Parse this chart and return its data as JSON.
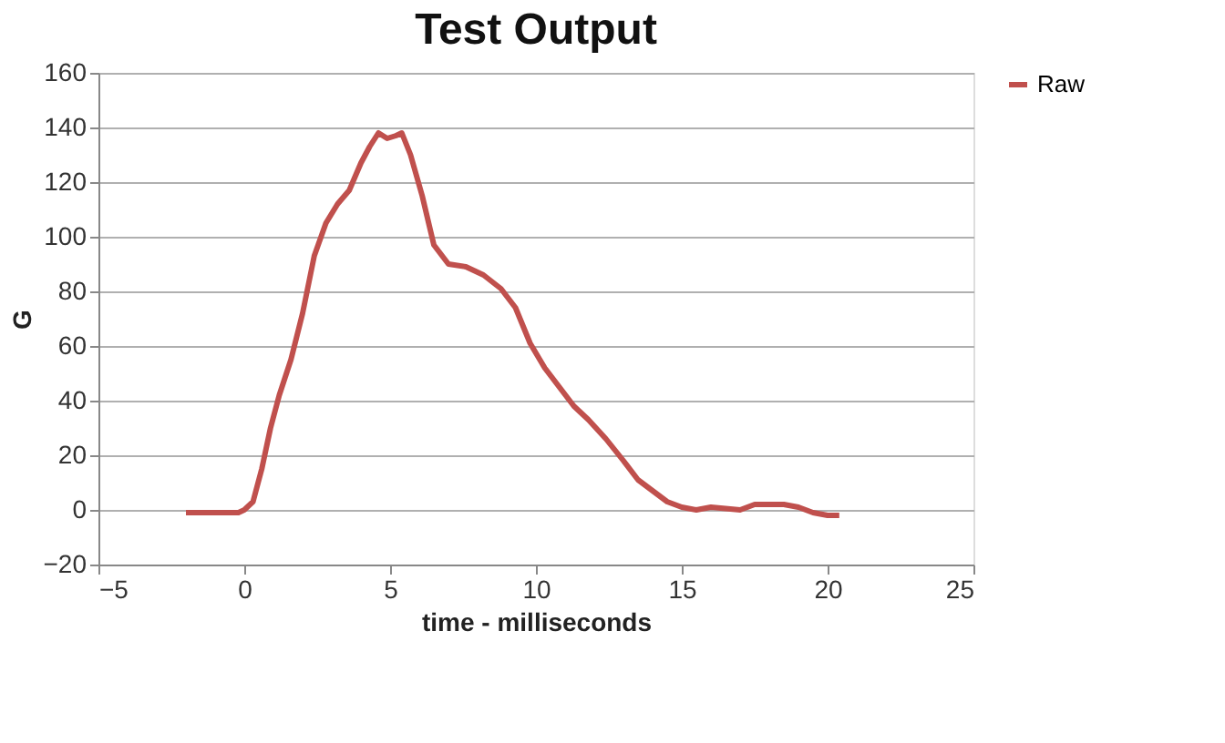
{
  "chart_data": {
    "type": "line",
    "title": "Test Output",
    "xlabel": "time - milliseconds",
    "ylabel": "G",
    "xlim": [
      -5,
      25
    ],
    "xticks": [
      -5,
      0,
      5,
      10,
      15,
      20,
      25
    ],
    "ylim": [
      -20,
      160
    ],
    "yticks": [
      -20,
      0,
      20,
      40,
      60,
      80,
      100,
      120,
      140,
      160
    ],
    "grid": "y",
    "legend": "right",
    "marker": "none",
    "line_style": "solid",
    "series": [
      {
        "name": "Raw",
        "color": "#c0504d",
        "x": [
          -2,
          -1,
          -0.2,
          0,
          0.3,
          0.6,
          0.9,
          1.2,
          1.6,
          2,
          2.4,
          2.8,
          3.2,
          3.6,
          4,
          4.3,
          4.6,
          4.9,
          5.2,
          5.4,
          5.7,
          6.1,
          6.5,
          7,
          7.6,
          8.2,
          8.8,
          9.3,
          9.8,
          10.3,
          10.8,
          11.3,
          11.8,
          12.4,
          13,
          13.5,
          14,
          14.5,
          15,
          15.5,
          16,
          17,
          17.5,
          18,
          18.5,
          19,
          19.5,
          20,
          20.4
        ],
        "values": [
          -1,
          -1,
          -1,
          0,
          3,
          15,
          30,
          42,
          55,
          72,
          93,
          105,
          112,
          117,
          127,
          133,
          138,
          136,
          137,
          138,
          130,
          115,
          97,
          90,
          89,
          86,
          81,
          74,
          61,
          52,
          45,
          38,
          33,
          26,
          18,
          11,
          7,
          3,
          1,
          0,
          1,
          0,
          2,
          2,
          2,
          1,
          -1,
          -2,
          -2
        ]
      }
    ]
  }
}
